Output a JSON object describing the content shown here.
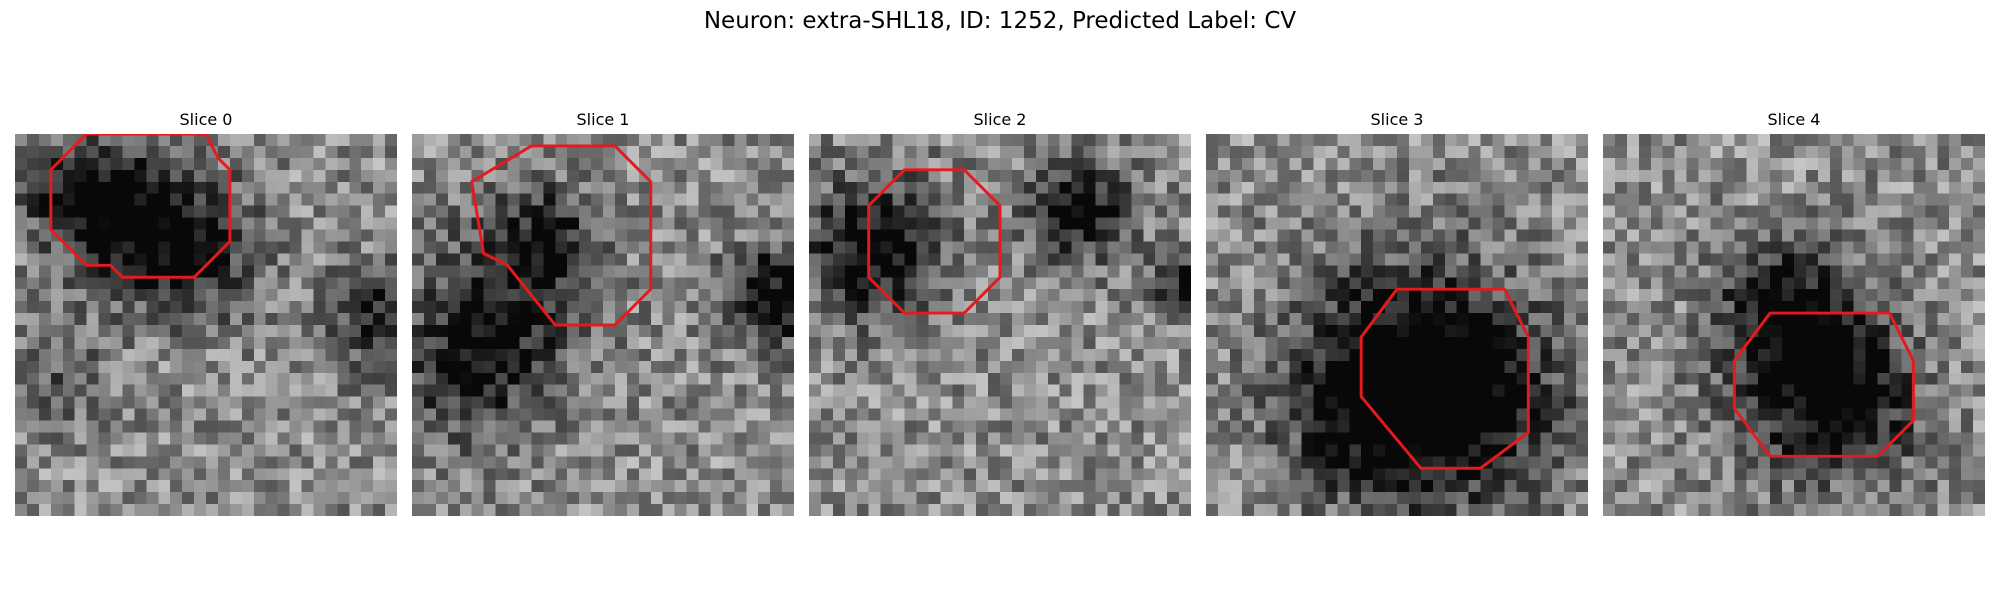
{
  "figure": {
    "title": "Neuron: extra-SHL18, ID: 1252, Predicted Label: CV"
  },
  "colors": {
    "contour": "#e41a1c",
    "colormap": "grayscale"
  },
  "panels": [
    {
      "title": "Slice 0"
    },
    {
      "title": "Slice 1"
    },
    {
      "title": "Slice 2"
    },
    {
      "title": "Slice 3"
    },
    {
      "title": "Slice 4"
    }
  ]
}
